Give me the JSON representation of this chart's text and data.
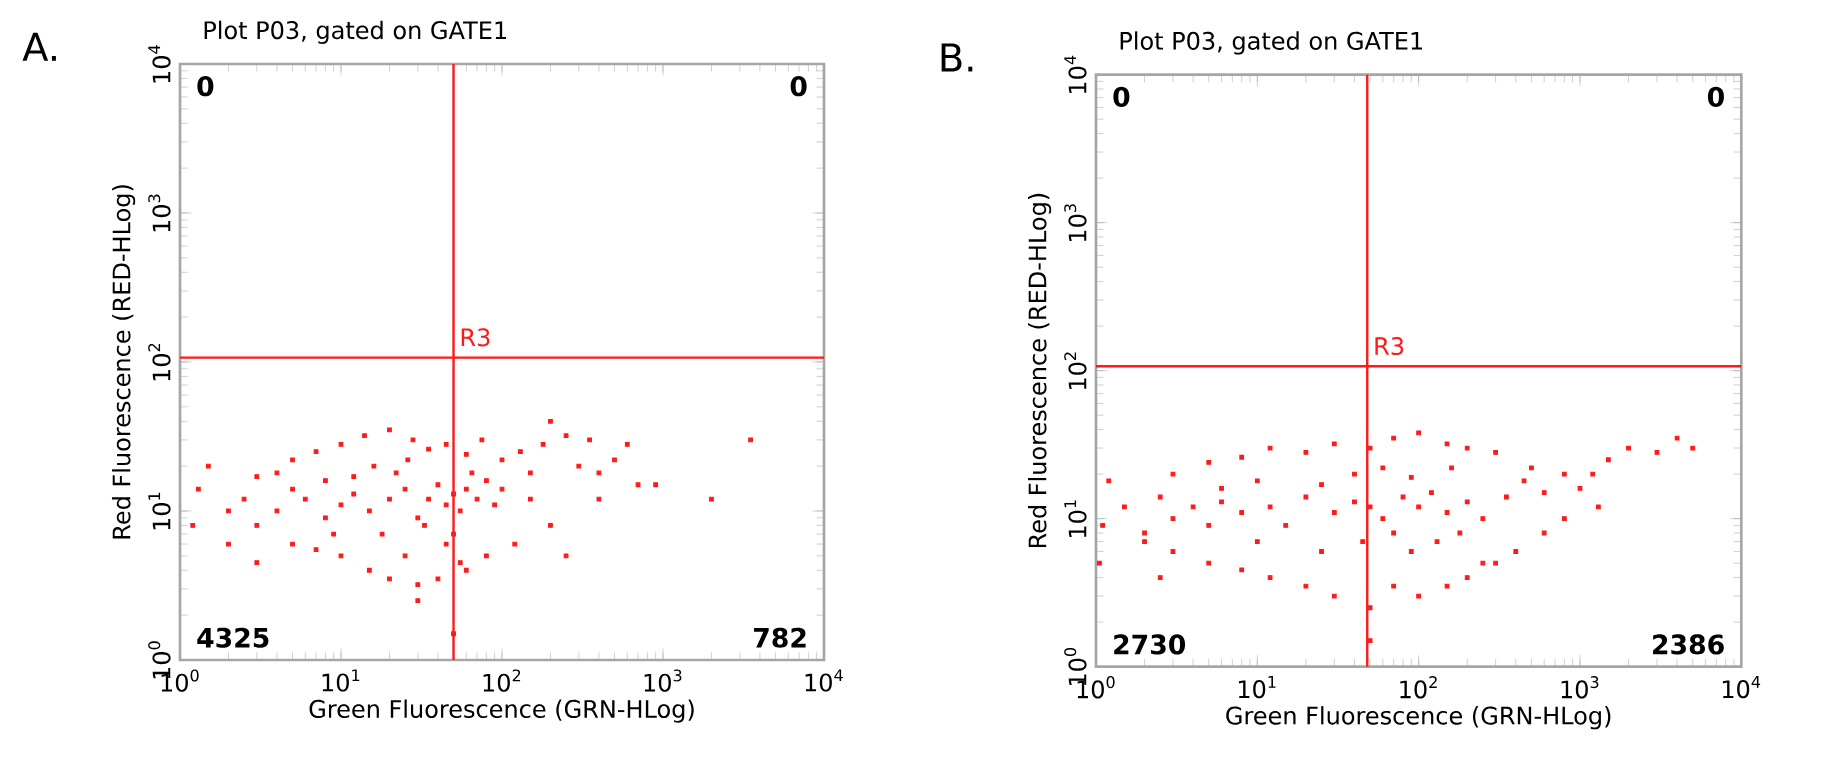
{
  "chart_data": [
    {
      "type": "scatter",
      "title": "Plot P03, gated on GATE1",
      "xlabel": "Green Fluorescence (GRN-HLog)",
      "ylabel": "Red Fluorescence (RED-HLog)",
      "log": "xy",
      "grid": false,
      "marker": "square",
      "xlim": [
        1,
        10000
      ],
      "ylim": [
        1,
        10000
      ],
      "xticks": [
        {
          "value": 1,
          "label": "10$^{0}$"
        },
        {
          "value": 10,
          "label": "10$^{1}$"
        },
        {
          "value": 100,
          "label": "10$^{2}$"
        },
        {
          "value": 1000,
          "label": "10$^{3}$"
        },
        {
          "value": 10000,
          "label": "10$^{4}$"
        }
      ],
      "yticks": [
        {
          "value": 1,
          "label": "10$^{0}$"
        },
        {
          "value": 10,
          "label": "10$^{1}$"
        },
        {
          "value": 100,
          "label": "10$^{2}$"
        },
        {
          "value": 1000,
          "label": "10$^{3}$"
        },
        {
          "value": 10000,
          "label": "10$^{4}$"
        }
      ],
      "ref_lines": [
        {
          "axis": "x",
          "value": 50,
          "color": "#ff1a1a"
        },
        {
          "axis": "y",
          "value": 107,
          "color": "#ff1a1a"
        }
      ],
      "annotations": [
        "A.",
        {
          "text": "R3",
          "x": 50,
          "y": 107
        },
        "0",
        "0",
        "4325",
        "782"
      ],
      "series": [
        {
          "color": "#ff1a1a",
          "x": [
            20,
            15,
            25,
            30,
            12,
            18,
            22,
            35,
            40,
            45,
            50,
            55,
            60,
            70,
            80,
            90,
            10,
            8,
            6,
            5,
            4,
            3,
            2.5,
            2,
            1.3,
            1.2,
            3,
            5,
            7,
            10,
            14,
            20,
            28,
            35,
            45,
            60,
            75,
            100,
            130,
            180,
            250,
            300,
            400,
            500,
            700,
            900,
            3500,
            2000,
            150,
            200,
            250,
            120,
            80,
            60,
            40,
            30,
            20,
            15,
            10,
            7,
            5,
            3,
            25,
            45,
            55,
            16,
            26,
            12,
            8,
            33,
            50,
            65,
            100,
            150,
            9,
            4,
            2,
            1.5,
            350,
            600,
            400,
            200,
            50,
            30
          ],
          "values": [
            12,
            10,
            14,
            9,
            13,
            7,
            18,
            12,
            15,
            11,
            13,
            10,
            14,
            12,
            16,
            11,
            11,
            9,
            12,
            14,
            10,
            8,
            12,
            6,
            14,
            8,
            17,
            22,
            25,
            28,
            32,
            35,
            30,
            26,
            28,
            24,
            30,
            22,
            25,
            28,
            32,
            20,
            18,
            22,
            15,
            15,
            30,
            12,
            12,
            8,
            5,
            6,
            5,
            4,
            3.5,
            3.2,
            3.5,
            4,
            5,
            5.5,
            6,
            4.5,
            5,
            6,
            4.5,
            20,
            22,
            17,
            16,
            8,
            7,
            18,
            14,
            18,
            7,
            18,
            10,
            20,
            30,
            28,
            12,
            40,
            1.5,
            2.5
          ]
        }
      ]
    },
    {
      "type": "scatter",
      "title": "Plot P03, gated on GATE1",
      "xlabel": "Green Fluorescence (GRN-HLog)",
      "ylabel": "Red Fluorescence (RED-HLog)",
      "log": "xy",
      "grid": false,
      "marker": "square",
      "xlim": [
        1,
        10000
      ],
      "ylim": [
        1,
        10000
      ],
      "xticks": [
        {
          "value": 1,
          "label": "10$^{0}$"
        },
        {
          "value": 10,
          "label": "10$^{1}$"
        },
        {
          "value": 100,
          "label": "10$^{2}$"
        },
        {
          "value": 1000,
          "label": "10$^{3}$"
        },
        {
          "value": 10000,
          "label": "10$^{4}$"
        }
      ],
      "yticks": [
        {
          "value": 1,
          "label": "10$^{0}$"
        },
        {
          "value": 10,
          "label": "10$^{1}$"
        },
        {
          "value": 100,
          "label": "10$^{2}$"
        },
        {
          "value": 1000,
          "label": "10$^{3}$"
        },
        {
          "value": 10000,
          "label": "10$^{4}$"
        }
      ],
      "ref_lines": [
        {
          "axis": "x",
          "value": 48,
          "color": "#ff1a1a"
        },
        {
          "axis": "y",
          "value": 107,
          "color": "#ff1a1a"
        }
      ],
      "annotations": [
        "B.",
        {
          "text": "R3",
          "x": 48,
          "y": 107
        },
        "0",
        "0",
        "2730",
        "2386"
      ],
      "series": [
        {
          "color": "#ff1a1a",
          "x": [
            12,
            15,
            20,
            30,
            40,
            50,
            60,
            80,
            100,
            120,
            150,
            200,
            250,
            8,
            6,
            5,
            4,
            3,
            2.5,
            2,
            1.5,
            1.2,
            1.1,
            1.05,
            3,
            5,
            8,
            12,
            20,
            30,
            50,
            70,
            100,
            150,
            200,
            300,
            500,
            800,
            1000,
            1500,
            2000,
            3000,
            4000,
            5000,
            1300,
            800,
            600,
            400,
            300,
            200,
            150,
            100,
            70,
            50,
            30,
            20,
            12,
            8,
            5,
            3,
            2,
            2.5,
            10,
            25,
            45,
            70,
            90,
            130,
            180,
            350,
            450,
            600,
            1200,
            10,
            40,
            60,
            90,
            160,
            25,
            6,
            250,
            50
          ],
          "values": [
            12,
            9,
            14,
            11,
            13,
            12,
            10,
            14,
            12,
            15,
            11,
            13,
            10,
            11,
            13,
            9,
            12,
            10,
            14,
            8,
            12,
            18,
            9,
            5,
            20,
            24,
            26,
            30,
            28,
            32,
            30,
            35,
            38,
            32,
            30,
            28,
            22,
            20,
            16,
            25,
            30,
            28,
            35,
            30,
            12,
            10,
            8,
            6,
            5,
            4,
            3.5,
            3,
            3.5,
            2.5,
            3,
            3.5,
            4,
            4.5,
            5,
            6,
            7,
            4,
            7,
            6,
            7,
            8,
            6,
            7,
            8,
            14,
            18,
            15,
            20,
            18,
            20,
            22,
            19,
            22,
            17,
            16,
            5,
            1.5
          ]
        }
      ]
    }
  ]
}
